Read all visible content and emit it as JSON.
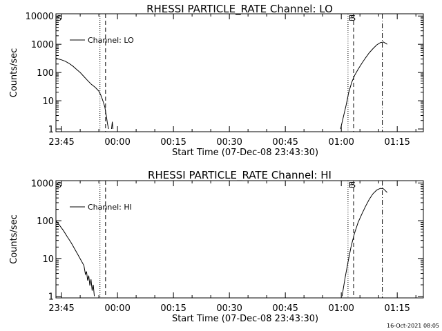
{
  "footer_timestamp": "16-Oct-2021 08:05",
  "chart_data": [
    {
      "type": "line",
      "title": "RHESSI PARTICLE_RATE Channel: LO",
      "xlabel": "Start Time (07-Dec-08 23:43:30)",
      "ylabel": "Counts/sec",
      "yscale": "log",
      "ylim": [
        0.8,
        12000
      ],
      "xlim": [
        -1.5,
        97
      ],
      "x_unit": "minutes after 23:45",
      "xtick_labels": [
        "23:45",
        "00:00",
        "00:15",
        "00:30",
        "00:45",
        "01:00",
        "01:15"
      ],
      "xtick_positions": [
        0,
        15,
        30,
        45,
        60,
        75,
        90
      ],
      "ytick_labels": [
        "1",
        "10",
        "100",
        "1000",
        "10000"
      ],
      "ytick_values": [
        1,
        10,
        100,
        1000,
        10000
      ],
      "legend": {
        "label": "Channel: LO",
        "placement": "top-left"
      },
      "markers": {
        "start_label": "S",
        "end_label": "E",
        "mid_label": "S"
      },
      "vlines": [
        {
          "x": 10.3,
          "style": "dotted"
        },
        {
          "x": 11.8,
          "style": "dashed"
        },
        {
          "x": 76.8,
          "style": "dotted"
        },
        {
          "x": 78.3,
          "style": "dashed"
        },
        {
          "x": 86.0,
          "style": "dashdot"
        }
      ],
      "series": [
        {
          "name": "Channel: LO",
          "segments": [
            [
              [
                -1.5,
                320
              ],
              [
                0,
                280
              ],
              [
                1,
                250
              ],
              [
                2,
                210
              ],
              [
                3,
                170
              ],
              [
                4,
                130
              ],
              [
                5,
                100
              ],
              [
                6,
                72
              ],
              [
                7,
                52
              ],
              [
                8,
                38
              ],
              [
                9,
                30
              ],
              [
                10,
                22
              ],
              [
                10.6,
                15
              ],
              [
                11.2,
                9
              ],
              [
                11.6,
                6
              ],
              [
                12.0,
                3
              ],
              [
                12.3,
                1.6
              ],
              [
                12.6,
                1
              ]
            ],
            [
              [
                13.4,
                1
              ],
              [
                13.6,
                1.8
              ],
              [
                13.8,
                1
              ]
            ],
            [
              [
                74.8,
                1
              ],
              [
                75.5,
                2.5
              ],
              [
                76.3,
                7
              ],
              [
                77.0,
                20
              ],
              [
                77.8,
                45
              ],
              [
                78.6,
                80
              ],
              [
                79.5,
                130
              ],
              [
                80.5,
                210
              ],
              [
                81.5,
                330
              ],
              [
                82.5,
                500
              ],
              [
                83.5,
                700
              ],
              [
                84.5,
                950
              ],
              [
                85.5,
                1150
              ],
              [
                86.3,
                1200
              ],
              [
                87.3,
                1000
              ]
            ]
          ]
        }
      ]
    },
    {
      "type": "line",
      "title": "RHESSI PARTICLE_RATE Channel: HI",
      "xlabel": "Start Time (07-Dec-08 23:43:30)",
      "ylabel": "Counts/sec",
      "yscale": "log",
      "ylim": [
        0.9,
        1150
      ],
      "xlim": [
        -1.5,
        97
      ],
      "x_unit": "minutes after 23:45",
      "xtick_labels": [
        "23:45",
        "00:00",
        "00:15",
        "00:30",
        "00:45",
        "01:00",
        "01:15"
      ],
      "xtick_positions": [
        0,
        15,
        30,
        45,
        60,
        75,
        90
      ],
      "ytick_labels": [
        "1",
        "10",
        "100",
        "1000"
      ],
      "ytick_values": [
        1,
        10,
        100,
        1000
      ],
      "legend": {
        "label": "Channel: HI",
        "placement": "top-left"
      },
      "markers": {
        "start_label": "S",
        "end_label": "E",
        "mid_label": "S"
      },
      "vlines": [
        {
          "x": 10.3,
          "style": "dotted"
        },
        {
          "x": 11.8,
          "style": "dashed"
        },
        {
          "x": 76.8,
          "style": "dotted"
        },
        {
          "x": 78.3,
          "style": "dashed"
        },
        {
          "x": 86.0,
          "style": "dashdot"
        }
      ],
      "series": [
        {
          "name": "Channel: HI",
          "segments": [
            [
              [
                -1.5,
                100
              ],
              [
                -0.5,
                75
              ],
              [
                0.5,
                55
              ],
              [
                1.5,
                38
              ],
              [
                2.5,
                27
              ],
              [
                3.5,
                18
              ],
              [
                4.5,
                12
              ],
              [
                5.5,
                8
              ],
              [
                6,
                6.5
              ],
              [
                6.4,
                3.8
              ],
              [
                6.7,
                4.5
              ],
              [
                7.0,
                2.6
              ],
              [
                7.3,
                3.5
              ],
              [
                7.6,
                1.9
              ],
              [
                7.9,
                2.8
              ],
              [
                8.2,
                1.4
              ],
              [
                8.5,
                2.0
              ],
              [
                8.8,
                1.0
              ]
            ],
            [
              [
                75.2,
                1
              ],
              [
                76.0,
                3
              ],
              [
                76.8,
                8
              ],
              [
                77.6,
                20
              ],
              [
                78.5,
                45
              ],
              [
                79.5,
                90
              ],
              [
                80.5,
                150
              ],
              [
                81.5,
                240
              ],
              [
                82.5,
                370
              ],
              [
                83.5,
                520
              ],
              [
                84.5,
                650
              ],
              [
                85.5,
                720
              ],
              [
                86.3,
                700
              ],
              [
                87.3,
                560
              ]
            ]
          ]
        }
      ]
    }
  ]
}
